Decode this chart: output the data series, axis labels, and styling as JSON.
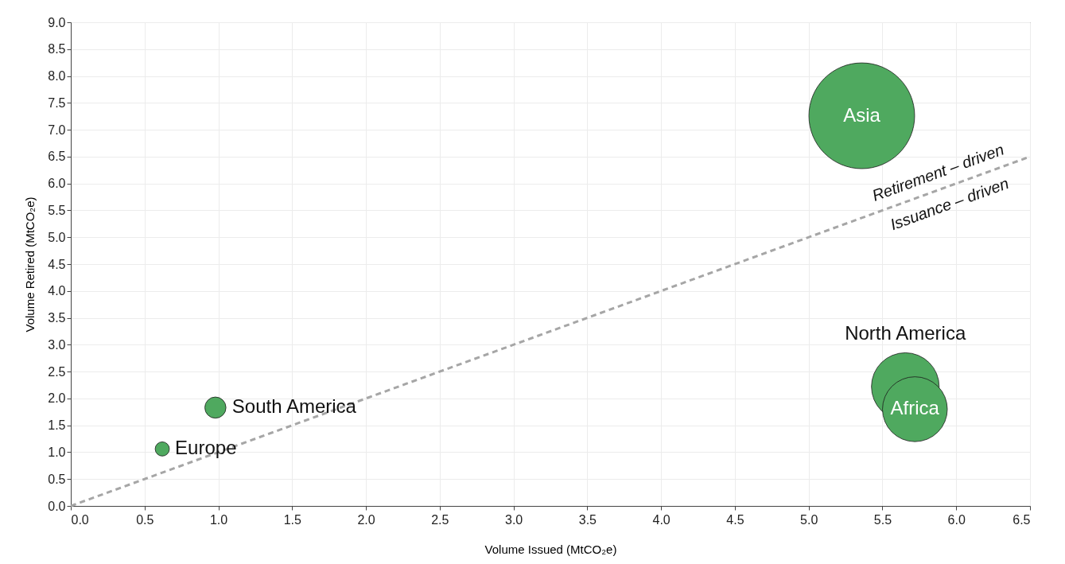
{
  "chart_data": {
    "type": "bubble",
    "xlabel": "Volume Issued (MtCO₂e)",
    "ylabel": "Volume Retired (MtCO₂e)",
    "xlim": [
      0,
      6.5
    ],
    "ylim": [
      0,
      9
    ],
    "xticks": [
      {
        "value": 0,
        "label": "0.0"
      },
      0.5,
      {
        "value": 1,
        "label": "1.0"
      },
      1.5,
      {
        "value": 2,
        "label": "2.0"
      },
      2.5,
      {
        "value": 3,
        "label": "3.0"
      },
      3.5,
      {
        "value": 4,
        "label": "4.0"
      },
      4.5,
      {
        "value": 5,
        "label": "5.0"
      },
      5.5,
      {
        "value": 6,
        "label": "6.0"
      },
      6.5
    ],
    "yticks": [
      {
        "value": 0,
        "label": "0.0"
      },
      0.5,
      {
        "value": 1,
        "label": "1.0"
      },
      1.5,
      {
        "value": 2,
        "label": "2.0"
      },
      2.5,
      {
        "value": 3,
        "label": "3.0"
      },
      3.5,
      {
        "value": 4,
        "label": "4.0"
      },
      4.5,
      {
        "value": 5,
        "label": "5.0"
      },
      5.5,
      {
        "value": 6,
        "label": "6.0"
      },
      6.5,
      {
        "value": 7,
        "label": "7.0"
      },
      7.5,
      {
        "value": 8,
        "label": "8.0"
      },
      8.5,
      {
        "value": 9,
        "label": "9.0"
      }
    ],
    "grid": true,
    "series": [
      {
        "type": "line",
        "color": "#a6a6a6",
        "line_style": "dashed",
        "x": [
          0,
          6.5
        ],
        "values": [
          0,
          6.5
        ]
      },
      {
        "name": "Asia",
        "color": "#4fa95f",
        "x": [
          5.36
        ],
        "values": [
          7.26
        ],
        "sizes": [
          1
        ]
      },
      {
        "name": "North America",
        "color": "#4fa95f",
        "x": [
          5.655
        ],
        "values": [
          2.22
        ],
        "sizes": [
          0.41
        ]
      },
      {
        "name": "Africa",
        "color": "#4fa95f",
        "x": [
          5.72
        ],
        "values": [
          1.8
        ],
        "sizes": [
          0.376
        ]
      },
      {
        "name": "South America",
        "color": "#4fa95f",
        "x": [
          0.98
        ],
        "values": [
          1.83
        ],
        "sizes": [
          0.04
        ]
      },
      {
        "name": "Europe",
        "color": "#4fa95f",
        "x": [
          0.62
        ],
        "values": [
          1.06
        ],
        "sizes": [
          0.018
        ]
      }
    ],
    "annotations": [
      "Retirement – driven",
      "Issuance – driven"
    ]
  }
}
